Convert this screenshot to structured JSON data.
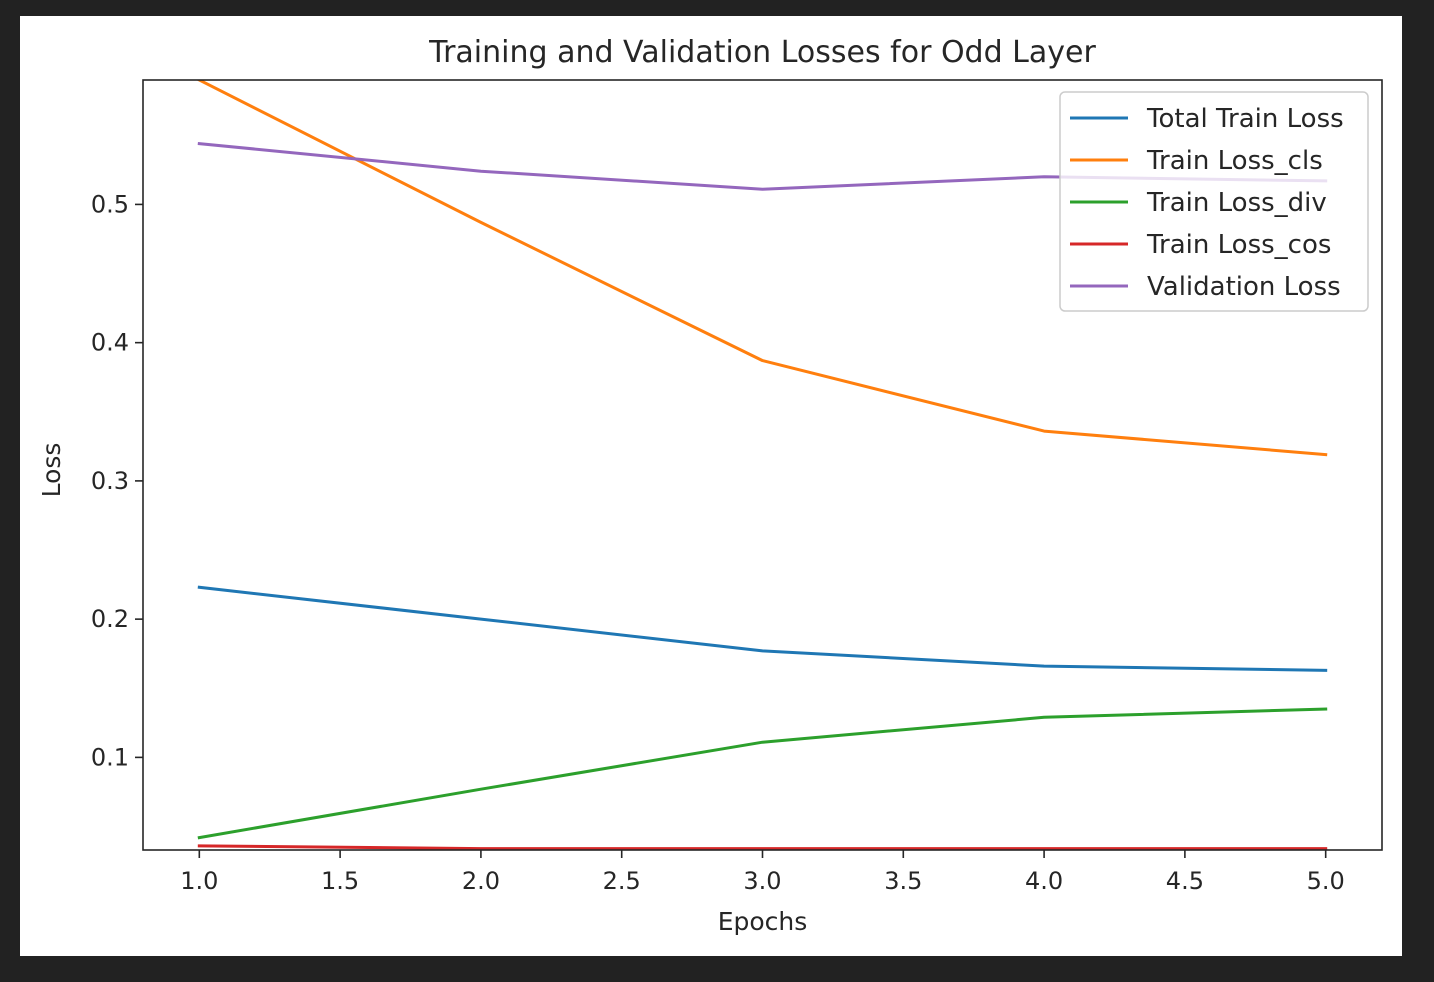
{
  "chart_data": {
    "type": "line",
    "title": "Training and Validation Losses for Odd Layer",
    "xlabel": "Epochs",
    "ylabel": "Loss",
    "x": [
      1,
      2,
      3,
      4,
      5
    ],
    "xlim": [
      0.8,
      5.2
    ],
    "ylim": [
      0.033,
      0.59
    ],
    "xticks": [
      1.0,
      1.5,
      2.0,
      2.5,
      3.0,
      3.5,
      4.0,
      4.5,
      5.0
    ],
    "xtick_labels": [
      "1.0",
      "1.5",
      "2.0",
      "2.5",
      "3.0",
      "3.5",
      "4.0",
      "4.5",
      "5.0"
    ],
    "yticks": [
      0.1,
      0.2,
      0.3,
      0.4,
      0.5
    ],
    "ytick_labels": [
      "0.1",
      "0.2",
      "0.3",
      "0.4",
      "0.5"
    ],
    "grid": false,
    "legend_position": "top-right",
    "series": [
      {
        "name": "Total Train Loss",
        "color": "#1f77b4",
        "values": [
          0.223,
          0.2,
          0.177,
          0.166,
          0.163
        ]
      },
      {
        "name": "Train Loss_cls",
        "color": "#ff7f0e",
        "values": [
          0.59,
          0.487,
          0.387,
          0.336,
          0.319
        ]
      },
      {
        "name": "Train Loss_div",
        "color": "#2ca02c",
        "values": [
          0.042,
          0.077,
          0.111,
          0.129,
          0.135
        ]
      },
      {
        "name": "Train Loss_cos",
        "color": "#d62728",
        "values": [
          0.036,
          0.034,
          0.034,
          0.034,
          0.034
        ]
      },
      {
        "name": "Validation Loss",
        "color": "#9467bd",
        "values": [
          0.544,
          0.524,
          0.511,
          0.52,
          0.517
        ]
      }
    ]
  }
}
